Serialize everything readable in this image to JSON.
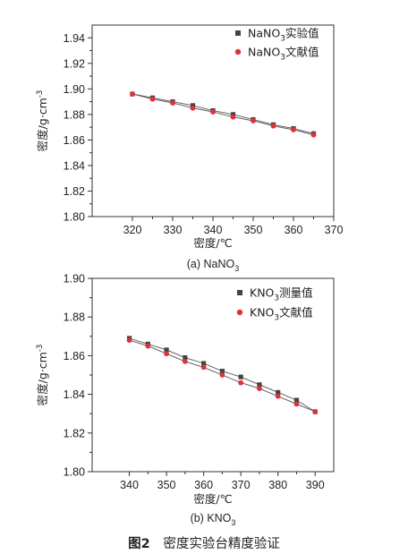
{
  "figure_caption": {
    "label": "图2",
    "text": "密度实验台精度验证"
  },
  "colors": {
    "black_series": "#444444",
    "red_series": "#e0303a",
    "line": "#555555"
  },
  "chart_data": [
    {
      "type": "line",
      "caption": "(a) NaNO",
      "caption_sub": "3",
      "xlabel": "密度/℃",
      "ylabel": "密度/g·cm",
      "ylabel_sup": "-3",
      "xlim": [
        310,
        370
      ],
      "ylim": [
        1.8,
        1.95
      ],
      "xticks": [
        "320",
        "330",
        "340",
        "350",
        "360",
        "370"
      ],
      "yticks": [
        "1.80",
        "1.82",
        "1.84",
        "1.86",
        "1.88",
        "1.90",
        "1.92",
        "1.94"
      ],
      "legend_position": "top-right",
      "series": [
        {
          "name_pre": "NaNO",
          "name_sub": "3",
          "name_post": "实验值",
          "marker": "square",
          "color": "#444444",
          "x": [
            320,
            325,
            330,
            335,
            340,
            345,
            350,
            355,
            360,
            365
          ],
          "y": [
            1.896,
            1.893,
            1.89,
            1.887,
            1.883,
            1.88,
            1.876,
            1.872,
            1.869,
            1.865
          ]
        },
        {
          "name_pre": "NaNO",
          "name_sub": "3",
          "name_post": "文献值",
          "marker": "circle",
          "color": "#e0303a",
          "x": [
            320,
            325,
            330,
            335,
            340,
            345,
            350,
            355,
            360,
            365
          ],
          "y": [
            1.896,
            1.892,
            1.889,
            1.885,
            1.882,
            1.878,
            1.875,
            1.871,
            1.868,
            1.864
          ]
        }
      ]
    },
    {
      "type": "line",
      "caption": "(b) KNO",
      "caption_sub": "3",
      "xlabel": "密度/℃",
      "ylabel": "密度/g·cm",
      "ylabel_sup": "-3",
      "xlim": [
        330,
        395
      ],
      "ylim": [
        1.8,
        1.9
      ],
      "xticks": [
        "340",
        "350",
        "360",
        "370",
        "380",
        "390"
      ],
      "yticks": [
        "1.80",
        "1.82",
        "1.84",
        "1.86",
        "1.88",
        "1.90"
      ],
      "legend_position": "top-right",
      "series": [
        {
          "name_pre": "KNO",
          "name_sub": "3",
          "name_post": "测量值",
          "marker": "square",
          "color": "#444444",
          "x": [
            340,
            345,
            350,
            355,
            360,
            365,
            370,
            375,
            380,
            385,
            390
          ],
          "y": [
            1.869,
            1.866,
            1.863,
            1.859,
            1.856,
            1.852,
            1.849,
            1.845,
            1.841,
            1.837,
            1.831
          ]
        },
        {
          "name_pre": "KNO",
          "name_sub": "3",
          "name_post": "文献值",
          "marker": "circle",
          "color": "#e0303a",
          "x": [
            340,
            345,
            350,
            355,
            360,
            365,
            370,
            375,
            380,
            385,
            390
          ],
          "y": [
            1.868,
            1.865,
            1.861,
            1.857,
            1.854,
            1.85,
            1.846,
            1.843,
            1.839,
            1.835,
            1.831
          ]
        }
      ]
    }
  ]
}
